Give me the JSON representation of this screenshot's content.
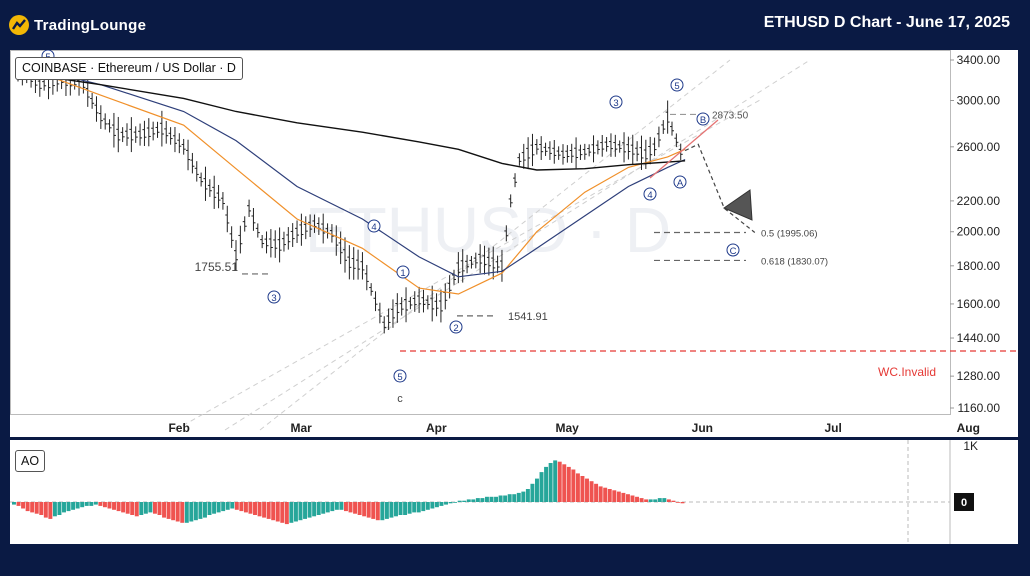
{
  "header": {
    "brand": "TradingLounge",
    "chart_title": "ETHUSD D Chart - June 17, 2025"
  },
  "symbol_label": "COINBASE · Ethereum / US Dollar · D",
  "watermark": "ETHUSD · D",
  "ao_label": "AO",
  "annotations": {
    "low_mar": "1755.51",
    "low_may": "1541.91",
    "high_jun": "2873.50",
    "fib_05": "0.5 (1995.06)",
    "fib_0618": "0.618 (1830.07)",
    "invalid": "WC.Invalid",
    "wave_c_minor": "c"
  },
  "wave_labels": [
    "1",
    "2",
    "3",
    "4",
    "5",
    "A",
    "B",
    "C"
  ],
  "colors": {
    "bg": "#0a1a44",
    "up_bar": "#26a69a",
    "down_bar": "#ef5350",
    "price_bar": "#222222",
    "ema_orange": "#f0902a",
    "ema_blue": "#2e3f7a",
    "ema_black": "#111111",
    "invalid_line": "#e53935",
    "wave_circle": "#1f3a8a",
    "projection": "#444444"
  },
  "chart_data": {
    "type": "line",
    "title": "ETHUSD D Chart - June 17, 2025",
    "xlabel": "",
    "ylabel": "",
    "x_ticks": [
      "Feb",
      "Mar",
      "Apr",
      "May",
      "Jun",
      "Jul",
      "Aug"
    ],
    "y_ticks": [
      3400,
      3000,
      2600,
      2200,
      2000,
      1800,
      1600,
      1440,
      1280,
      1160
    ],
    "ylim": [
      1080,
      3600
    ],
    "y_scale": "log",
    "grid": false,
    "x_date_start": "2025-01-15",
    "series": [
      {
        "kind": "price",
        "x": [
          "2025-01-15",
          "2025-01-20",
          "2025-01-25",
          "2025-01-30",
          "2025-02-03",
          "2025-02-07",
          "2025-02-12",
          "2025-02-17",
          "2025-02-22",
          "2025-02-26",
          "2025-03-03",
          "2025-03-06",
          "2025-03-09",
          "2025-03-12",
          "2025-03-16",
          "2025-03-20",
          "2025-03-24",
          "2025-03-28",
          "2025-04-01",
          "2025-04-04",
          "2025-04-09",
          "2025-04-12",
          "2025-04-17",
          "2025-04-22",
          "2025-04-26",
          "2025-05-01",
          "2025-05-06",
          "2025-05-08",
          "2025-05-10",
          "2025-05-14",
          "2025-05-20",
          "2025-05-25",
          "2025-05-30",
          "2025-06-04",
          "2025-06-08",
          "2025-06-10",
          "2025-06-13",
          "2025-06-16",
          "2025-06-17"
        ],
        "values": [
          3300,
          3150,
          3200,
          3150,
          2850,
          2700,
          2700,
          2750,
          2600,
          2350,
          2200,
          1860,
          2150,
          1940,
          1920,
          2000,
          2050,
          1990,
          1820,
          1800,
          1500,
          1580,
          1620,
          1590,
          1790,
          1840,
          1800,
          2200,
          2500,
          2600,
          2540,
          2560,
          2620,
          2590,
          2540,
          2600,
          2850,
          2560,
          2570
        ]
      },
      {
        "kind": "ema-fast",
        "x": [
          "2025-01-15",
          "2025-02-03",
          "2025-02-22",
          "2025-03-06",
          "2025-03-20",
          "2025-04-04",
          "2025-04-17",
          "2025-04-26",
          "2025-05-06",
          "2025-05-14",
          "2025-05-25",
          "2025-06-04",
          "2025-06-13",
          "2025-06-17"
        ],
        "values": [
          3350,
          3050,
          2780,
          2430,
          2080,
          1900,
          1680,
          1650,
          1760,
          2000,
          2260,
          2440,
          2520,
          2580
        ]
      },
      {
        "kind": "ema-mid",
        "x": [
          "2025-01-15",
          "2025-02-03",
          "2025-02-22",
          "2025-03-06",
          "2025-03-20",
          "2025-04-04",
          "2025-04-17",
          "2025-04-26",
          "2025-05-06",
          "2025-05-14",
          "2025-05-25",
          "2025-06-04",
          "2025-06-13",
          "2025-06-17"
        ],
        "values": [
          3350,
          3150,
          2900,
          2650,
          2300,
          2080,
          1850,
          1740,
          1770,
          1900,
          2100,
          2300,
          2440,
          2500
        ]
      },
      {
        "kind": "ema-slow",
        "x": [
          "2025-01-15",
          "2025-02-03",
          "2025-02-22",
          "2025-03-06",
          "2025-03-20",
          "2025-04-04",
          "2025-04-17",
          "2025-04-26",
          "2025-05-06",
          "2025-05-14",
          "2025-05-25",
          "2025-06-04",
          "2025-06-13",
          "2025-06-17"
        ],
        "values": [
          3270,
          3150,
          3020,
          2900,
          2800,
          2720,
          2640,
          2580,
          2470,
          2420,
          2430,
          2460,
          2480,
          2490
        ]
      },
      {
        "kind": "projection",
        "x": [
          "2025-06-17",
          "2025-06-20",
          "2025-06-26",
          "2025-07-03"
        ],
        "values": [
          2570,
          2620,
          2150,
          1995
        ]
      }
    ],
    "levels": [
      {
        "name": "1755.51",
        "value": 1755.51
      },
      {
        "name": "1541.91",
        "value": 1541.91
      },
      {
        "name": "2873.50",
        "value": 2873.5
      },
      {
        "name": "0.5 (1995.06)",
        "value": 1995.06
      },
      {
        "name": "0.618 (1830.07)",
        "value": 1830.07
      },
      {
        "name": "WC.Invalid",
        "value": 1385
      }
    ],
    "ao": {
      "x_start": "2025-01-15",
      "x_end": "2025-06-17",
      "values": [
        -2,
        -3,
        -5,
        -7,
        -8,
        -9,
        -10,
        -12,
        -13,
        -11,
        -10,
        -8,
        -7,
        -6,
        -5,
        -4,
        -3,
        -3,
        -2,
        -3,
        -4,
        -5,
        -6,
        -7,
        -8,
        -9,
        -10,
        -11,
        -10,
        -9,
        -8,
        -9,
        -10,
        -12,
        -13,
        -14,
        -15,
        -16,
        -16,
        -15,
        -14,
        -13,
        -12,
        -10,
        -9,
        -8,
        -7,
        -6,
        -5,
        -6,
        -7,
        -8,
        -9,
        -10,
        -11,
        -12,
        -13,
        -14,
        -15,
        -16,
        -17,
        -16,
        -15,
        -14,
        -13,
        -12,
        -11,
        -10,
        -9,
        -8,
        -7,
        -6,
        -6,
        -7,
        -8,
        -9,
        -10,
        -11,
        -12,
        -13,
        -14,
        -14,
        -13,
        -12,
        -11,
        -10,
        -10,
        -9,
        -8,
        -8,
        -7,
        -6,
        -5,
        -4,
        -3,
        -2,
        -1,
        0,
        1,
        1,
        2,
        2,
        3,
        3,
        4,
        4,
        4,
        5,
        5,
        6,
        6,
        7,
        8,
        10,
        14,
        18,
        23,
        27,
        30,
        32,
        31,
        29,
        27,
        25,
        22,
        20,
        18,
        16,
        14,
        12,
        11,
        10,
        9,
        8,
        7,
        6,
        5,
        4,
        3,
        2,
        2,
        2,
        3,
        3,
        2,
        1,
        0,
        -1
      ]
    }
  }
}
